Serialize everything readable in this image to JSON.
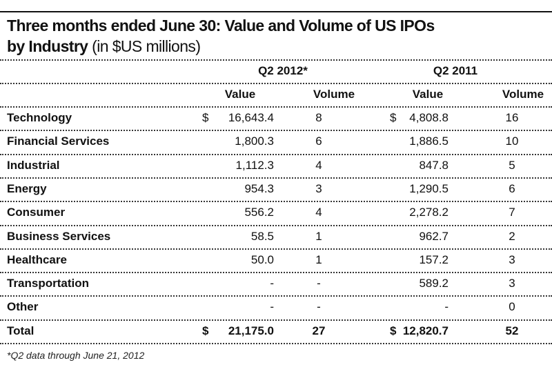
{
  "title": {
    "main_line1": "Three months ended June 30: Value and Volume of US IPOs",
    "main_line2": "by Industry",
    "unit": "(in $US millions)"
  },
  "chart_data": {
    "type": "table",
    "title": "Three months ended June 30: Value and Volume of US IPOs by Industry (in $US millions)",
    "period_headers": [
      "Q2 2012*",
      "Q2 2011"
    ],
    "column_headers": [
      "Value",
      "Volume",
      "Value",
      "Volume"
    ],
    "currency_symbol": "$",
    "rows": [
      {
        "industry": "Technology",
        "v2012": "16,643.4",
        "n2012": "8",
        "v2011": "4,808.8",
        "n2011": "16",
        "dollar": true
      },
      {
        "industry": "Financial Services",
        "v2012": "1,800.3",
        "n2012": "6",
        "v2011": "1,886.5",
        "n2011": "10"
      },
      {
        "industry": "Industrial",
        "v2012": "1,112.3",
        "n2012": "4",
        "v2011": "847.8",
        "n2011": "5"
      },
      {
        "industry": "Energy",
        "v2012": "954.3",
        "n2012": "3",
        "v2011": "1,290.5",
        "n2011": "6"
      },
      {
        "industry": "Consumer",
        "v2012": "556.2",
        "n2012": "4",
        "v2011": "2,278.2",
        "n2011": "7"
      },
      {
        "industry": "Business Services",
        "v2012": "58.5",
        "n2012": "1",
        "v2011": "962.7",
        "n2011": "2"
      },
      {
        "industry": "Healthcare",
        "v2012": "50.0",
        "n2012": "1",
        "v2011": "157.2",
        "n2011": "3"
      },
      {
        "industry": "Transportation",
        "v2012": "-",
        "n2012": "-",
        "v2011": "589.2",
        "n2011": "3"
      },
      {
        "industry": "Other",
        "v2012": "-",
        "n2012": "-",
        "v2011": "-",
        "n2011": "0"
      },
      {
        "industry": "Total",
        "v2012": "21,175.0",
        "n2012": "27",
        "v2011": "12,820.7",
        "n2011": "52",
        "dollar": true,
        "bold": true
      }
    ],
    "footnote": "*Q2 data through June 21, 2012"
  }
}
